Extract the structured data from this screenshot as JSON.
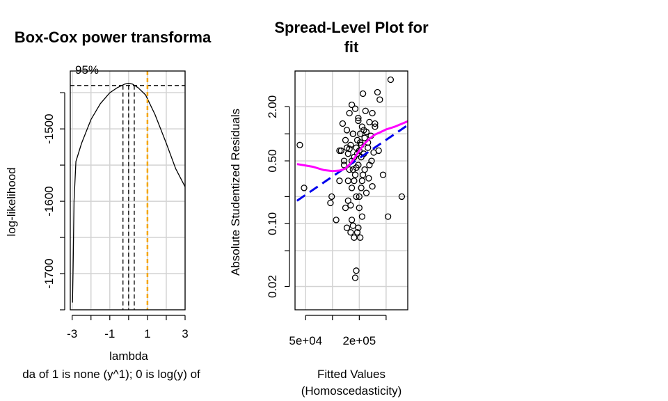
{
  "chart_data": [
    {
      "type": "line",
      "title": "Box-Cox power transforma",
      "xlabel": "lambda",
      "ylabel": "log-likelihood",
      "subtitle": "da of 1 is none (y^1); 0 is log(y) of",
      "ci_label": "95%",
      "xlim": [
        -3.1,
        3.0
      ],
      "ylim": [
        -1750,
        -1420
      ],
      "xticks": [
        -3,
        -1,
        1,
        3
      ],
      "xtick_labels": [
        "-3",
        "-1",
        "1",
        "3"
      ],
      "yticks": [
        -1500,
        -1600,
        -1700
      ],
      "ytick_labels": [
        "-1500",
        "-1600",
        "-1700"
      ],
      "grid": true,
      "curve": {
        "x": [
          -2.98,
          -2.95,
          -2.9,
          -2.8,
          -2.5,
          -2.0,
          -1.5,
          -1.0,
          -0.6,
          -0.2,
          0.0,
          0.2,
          0.5,
          0.9,
          1.4,
          2.0,
          2.5,
          3.0
        ],
        "y": [
          -1740,
          -1690,
          -1600,
          -1545,
          -1520,
          -1487,
          -1465,
          -1450,
          -1443,
          -1438,
          -1437,
          -1438,
          -1443,
          -1453,
          -1480,
          -1520,
          -1555,
          -1580
        ]
      },
      "ci_level_y": -1440,
      "lambda_hat": 0.0,
      "ci_bounds": [
        -0.3,
        0.3
      ],
      "reference_lambda": 1,
      "colors": {
        "curve": "#000000",
        "reference": "#f5a600",
        "grid": "#d3d3d3"
      }
    },
    {
      "type": "scatter",
      "title": "Spread-Level Plot for",
      "title_line2": "fit",
      "xlabel": "Fitted Values",
      "xlabel_line2": "(Homoscedasticity)",
      "ylabel": "Absolute Studentized Residuals",
      "log_x": true,
      "log_y": true,
      "xlim": [
        38000,
        700000
      ],
      "ylim": [
        0.011,
        5.0
      ],
      "xticks": [
        50000,
        200000
      ],
      "xtick_labels": [
        "5e+04",
        "2e+05"
      ],
      "yticks": [
        2.0,
        0.5,
        0.1,
        0.02
      ],
      "ytick_labels": [
        "2.00",
        "0.50",
        "0.10",
        "0.02"
      ],
      "grid": true,
      "x": [
        43000,
        48000,
        95000,
        98000,
        110000,
        120000,
        125000,
        130000,
        135000,
        140000,
        140000,
        145000,
        145000,
        150000,
        150000,
        155000,
        155000,
        160000,
        160000,
        165000,
        165000,
        165000,
        170000,
        170000,
        175000,
        175000,
        180000,
        180000,
        185000,
        185000,
        185000,
        190000,
        190000,
        195000,
        195000,
        200000,
        200000,
        205000,
        205000,
        210000,
        210000,
        215000,
        215000,
        220000,
        220000,
        225000,
        230000,
        235000,
        240000,
        250000,
        255000,
        260000,
        270000,
        275000,
        280000,
        290000,
        300000,
        320000,
        340000,
        370000,
        420000,
        450000,
        600000,
        120000,
        135000,
        150000,
        160000,
        170000,
        180000,
        190000,
        200000,
        215000,
        230000,
        250000,
        280000,
        330000,
        175000,
        195000,
        210000,
        240000,
        260000,
        300000,
        165000,
        185000,
        205000,
        225000,
        145000,
        170000,
        195000,
        155000,
        175000
      ],
      "y": [
        0.75,
        0.25,
        0.17,
        0.2,
        0.11,
        0.3,
        0.65,
        1.3,
        0.45,
        0.85,
        0.15,
        1.1,
        0.09,
        0.6,
        0.3,
        1.7,
        0.4,
        0.08,
        0.75,
        0.5,
        0.25,
        2.1,
        0.095,
        1.0,
        0.55,
        0.07,
        0.35,
        1.9,
        0.7,
        0.2,
        0.03,
        0.85,
        0.08,
        1.5,
        0.45,
        0.65,
        0.15,
        1.0,
        0.07,
        0.55,
        0.25,
        1.2,
        0.12,
        2.8,
        0.35,
        0.6,
        0.4,
        1.8,
        0.22,
        0.8,
        0.32,
        1.35,
        0.95,
        0.5,
        0.26,
        0.62,
        1.2,
        2.9,
        2.4,
        0.35,
        0.12,
        4.0,
        0.2,
        0.65,
        0.5,
        0.18,
        0.16,
        0.4,
        0.025,
        0.6,
        0.2,
        0.3,
        0.9,
        0.7,
        1.7,
        0.65,
        0.55,
        0.09,
        0.75,
        1.05,
        0.45,
        1.3,
        0.11,
        0.42,
        0.8,
        1.1,
        0.7,
        1.0,
        1.4,
        0.68,
        0.3
      ],
      "line_fit": {
        "x": [
          40000,
          700000
        ],
        "y": [
          0.18,
          1.25
        ],
        "color": "#0000ee",
        "dashed": true
      },
      "smooth": {
        "x": [
          40000,
          60000,
          80000,
          100000,
          120000,
          140000,
          160000,
          180000,
          200000,
          230000,
          260000,
          300000,
          350000,
          400000,
          500000,
          700000
        ],
        "y": [
          0.46,
          0.43,
          0.395,
          0.385,
          0.39,
          0.41,
          0.47,
          0.55,
          0.65,
          0.78,
          0.88,
          0.98,
          1.05,
          1.12,
          1.2,
          1.38
        ],
        "color": "#ff00ff"
      },
      "colors": {
        "points": "#000000",
        "grid": "#d3d3d3"
      }
    }
  ]
}
